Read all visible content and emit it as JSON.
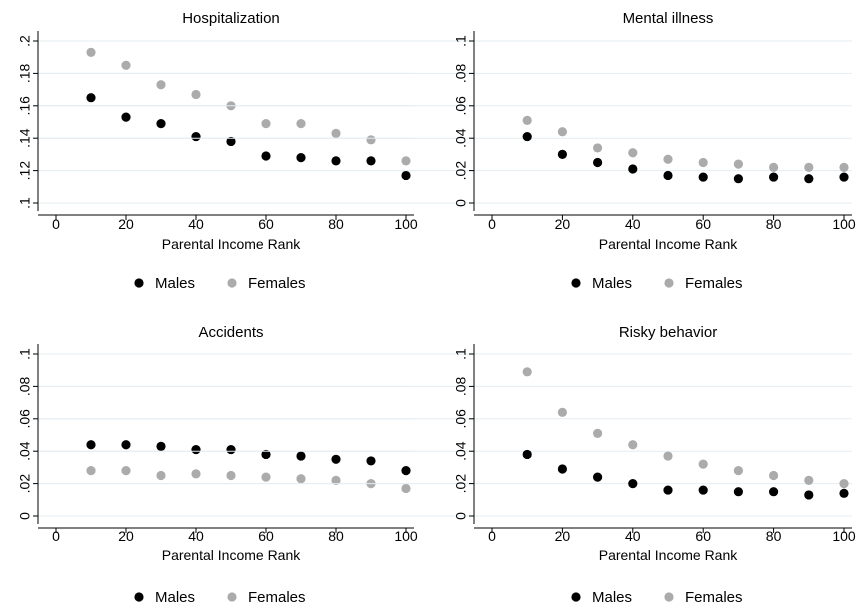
{
  "chart_data": [
    {
      "type": "scatter",
      "title": "Hospitalization",
      "xlabel": "Parental Income Rank",
      "ylabel": "",
      "xlim": [
        0,
        100
      ],
      "ylim": [
        0.1,
        0.2
      ],
      "xticks": [
        0,
        20,
        40,
        60,
        80,
        100
      ],
      "yticks": [
        0.1,
        0.12,
        0.14,
        0.16,
        0.18,
        0.2
      ],
      "ytick_labels": [
        ".1",
        ".12",
        ".14",
        ".16",
        ".18",
        ".2"
      ],
      "x": [
        10,
        20,
        30,
        40,
        50,
        60,
        70,
        80,
        90,
        100
      ],
      "series": [
        {
          "name": "Males",
          "color": "#000000",
          "values": [
            0.165,
            0.153,
            0.149,
            0.141,
            0.138,
            0.129,
            0.128,
            0.126,
            0.126,
            0.117
          ]
        },
        {
          "name": "Females",
          "color": "#ababab",
          "values": [
            0.193,
            0.185,
            0.173,
            0.167,
            0.16,
            0.149,
            0.149,
            0.143,
            0.139,
            0.126
          ]
        }
      ],
      "grid": true,
      "legend": "below"
    },
    {
      "type": "scatter",
      "title": "Mental illness",
      "xlabel": "Parental Income Rank",
      "ylabel": "",
      "xlim": [
        0,
        100
      ],
      "ylim": [
        0,
        0.1
      ],
      "xticks": [
        0,
        20,
        40,
        60,
        80,
        100
      ],
      "yticks": [
        0,
        0.02,
        0.04,
        0.06,
        0.08,
        0.1
      ],
      "ytick_labels": [
        "0",
        ".02",
        ".04",
        ".06",
        ".08",
        ".1"
      ],
      "x": [
        10,
        20,
        30,
        40,
        50,
        60,
        70,
        80,
        90,
        100
      ],
      "series": [
        {
          "name": "Males",
          "color": "#000000",
          "values": [
            0.041,
            0.03,
            0.025,
            0.021,
            0.017,
            0.016,
            0.015,
            0.016,
            0.015,
            0.016
          ]
        },
        {
          "name": "Females",
          "color": "#ababab",
          "values": [
            0.051,
            0.044,
            0.034,
            0.031,
            0.027,
            0.025,
            0.024,
            0.022,
            0.022,
            0.022
          ]
        }
      ],
      "grid": true,
      "legend": "below"
    },
    {
      "type": "scatter",
      "title": "Accidents",
      "xlabel": "Parental Income Rank",
      "ylabel": "",
      "xlim": [
        0,
        100
      ],
      "ylim": [
        0,
        0.1
      ],
      "xticks": [
        0,
        20,
        40,
        60,
        80,
        100
      ],
      "yticks": [
        0,
        0.02,
        0.04,
        0.06,
        0.08,
        0.1
      ],
      "ytick_labels": [
        "0",
        ".02",
        ".04",
        ".06",
        ".08",
        ".1"
      ],
      "x": [
        10,
        20,
        30,
        40,
        50,
        60,
        70,
        80,
        90,
        100
      ],
      "series": [
        {
          "name": "Males",
          "color": "#000000",
          "values": [
            0.044,
            0.044,
            0.043,
            0.041,
            0.041,
            0.038,
            0.037,
            0.035,
            0.034,
            0.028
          ]
        },
        {
          "name": "Females",
          "color": "#ababab",
          "values": [
            0.028,
            0.028,
            0.025,
            0.026,
            0.025,
            0.024,
            0.023,
            0.022,
            0.02,
            0.017
          ]
        }
      ],
      "grid": true,
      "legend": "below"
    },
    {
      "type": "scatter",
      "title": "Risky behavior",
      "xlabel": "Parental Income Rank",
      "ylabel": "",
      "xlim": [
        0,
        100
      ],
      "ylim": [
        0,
        0.1
      ],
      "xticks": [
        0,
        20,
        40,
        60,
        80,
        100
      ],
      "yticks": [
        0,
        0.02,
        0.04,
        0.06,
        0.08,
        0.1
      ],
      "ytick_labels": [
        "0",
        ".02",
        ".04",
        ".06",
        ".08",
        ".1"
      ],
      "x": [
        10,
        20,
        30,
        40,
        50,
        60,
        70,
        80,
        90,
        100
      ],
      "series": [
        {
          "name": "Males",
          "color": "#000000",
          "values": [
            0.038,
            0.029,
            0.024,
            0.02,
            0.016,
            0.016,
            0.015,
            0.015,
            0.013,
            0.014
          ]
        },
        {
          "name": "Females",
          "color": "#ababab",
          "values": [
            0.089,
            0.064,
            0.051,
            0.044,
            0.037,
            0.032,
            0.028,
            0.025,
            0.022,
            0.02
          ]
        }
      ],
      "grid": true,
      "legend": "below"
    }
  ]
}
